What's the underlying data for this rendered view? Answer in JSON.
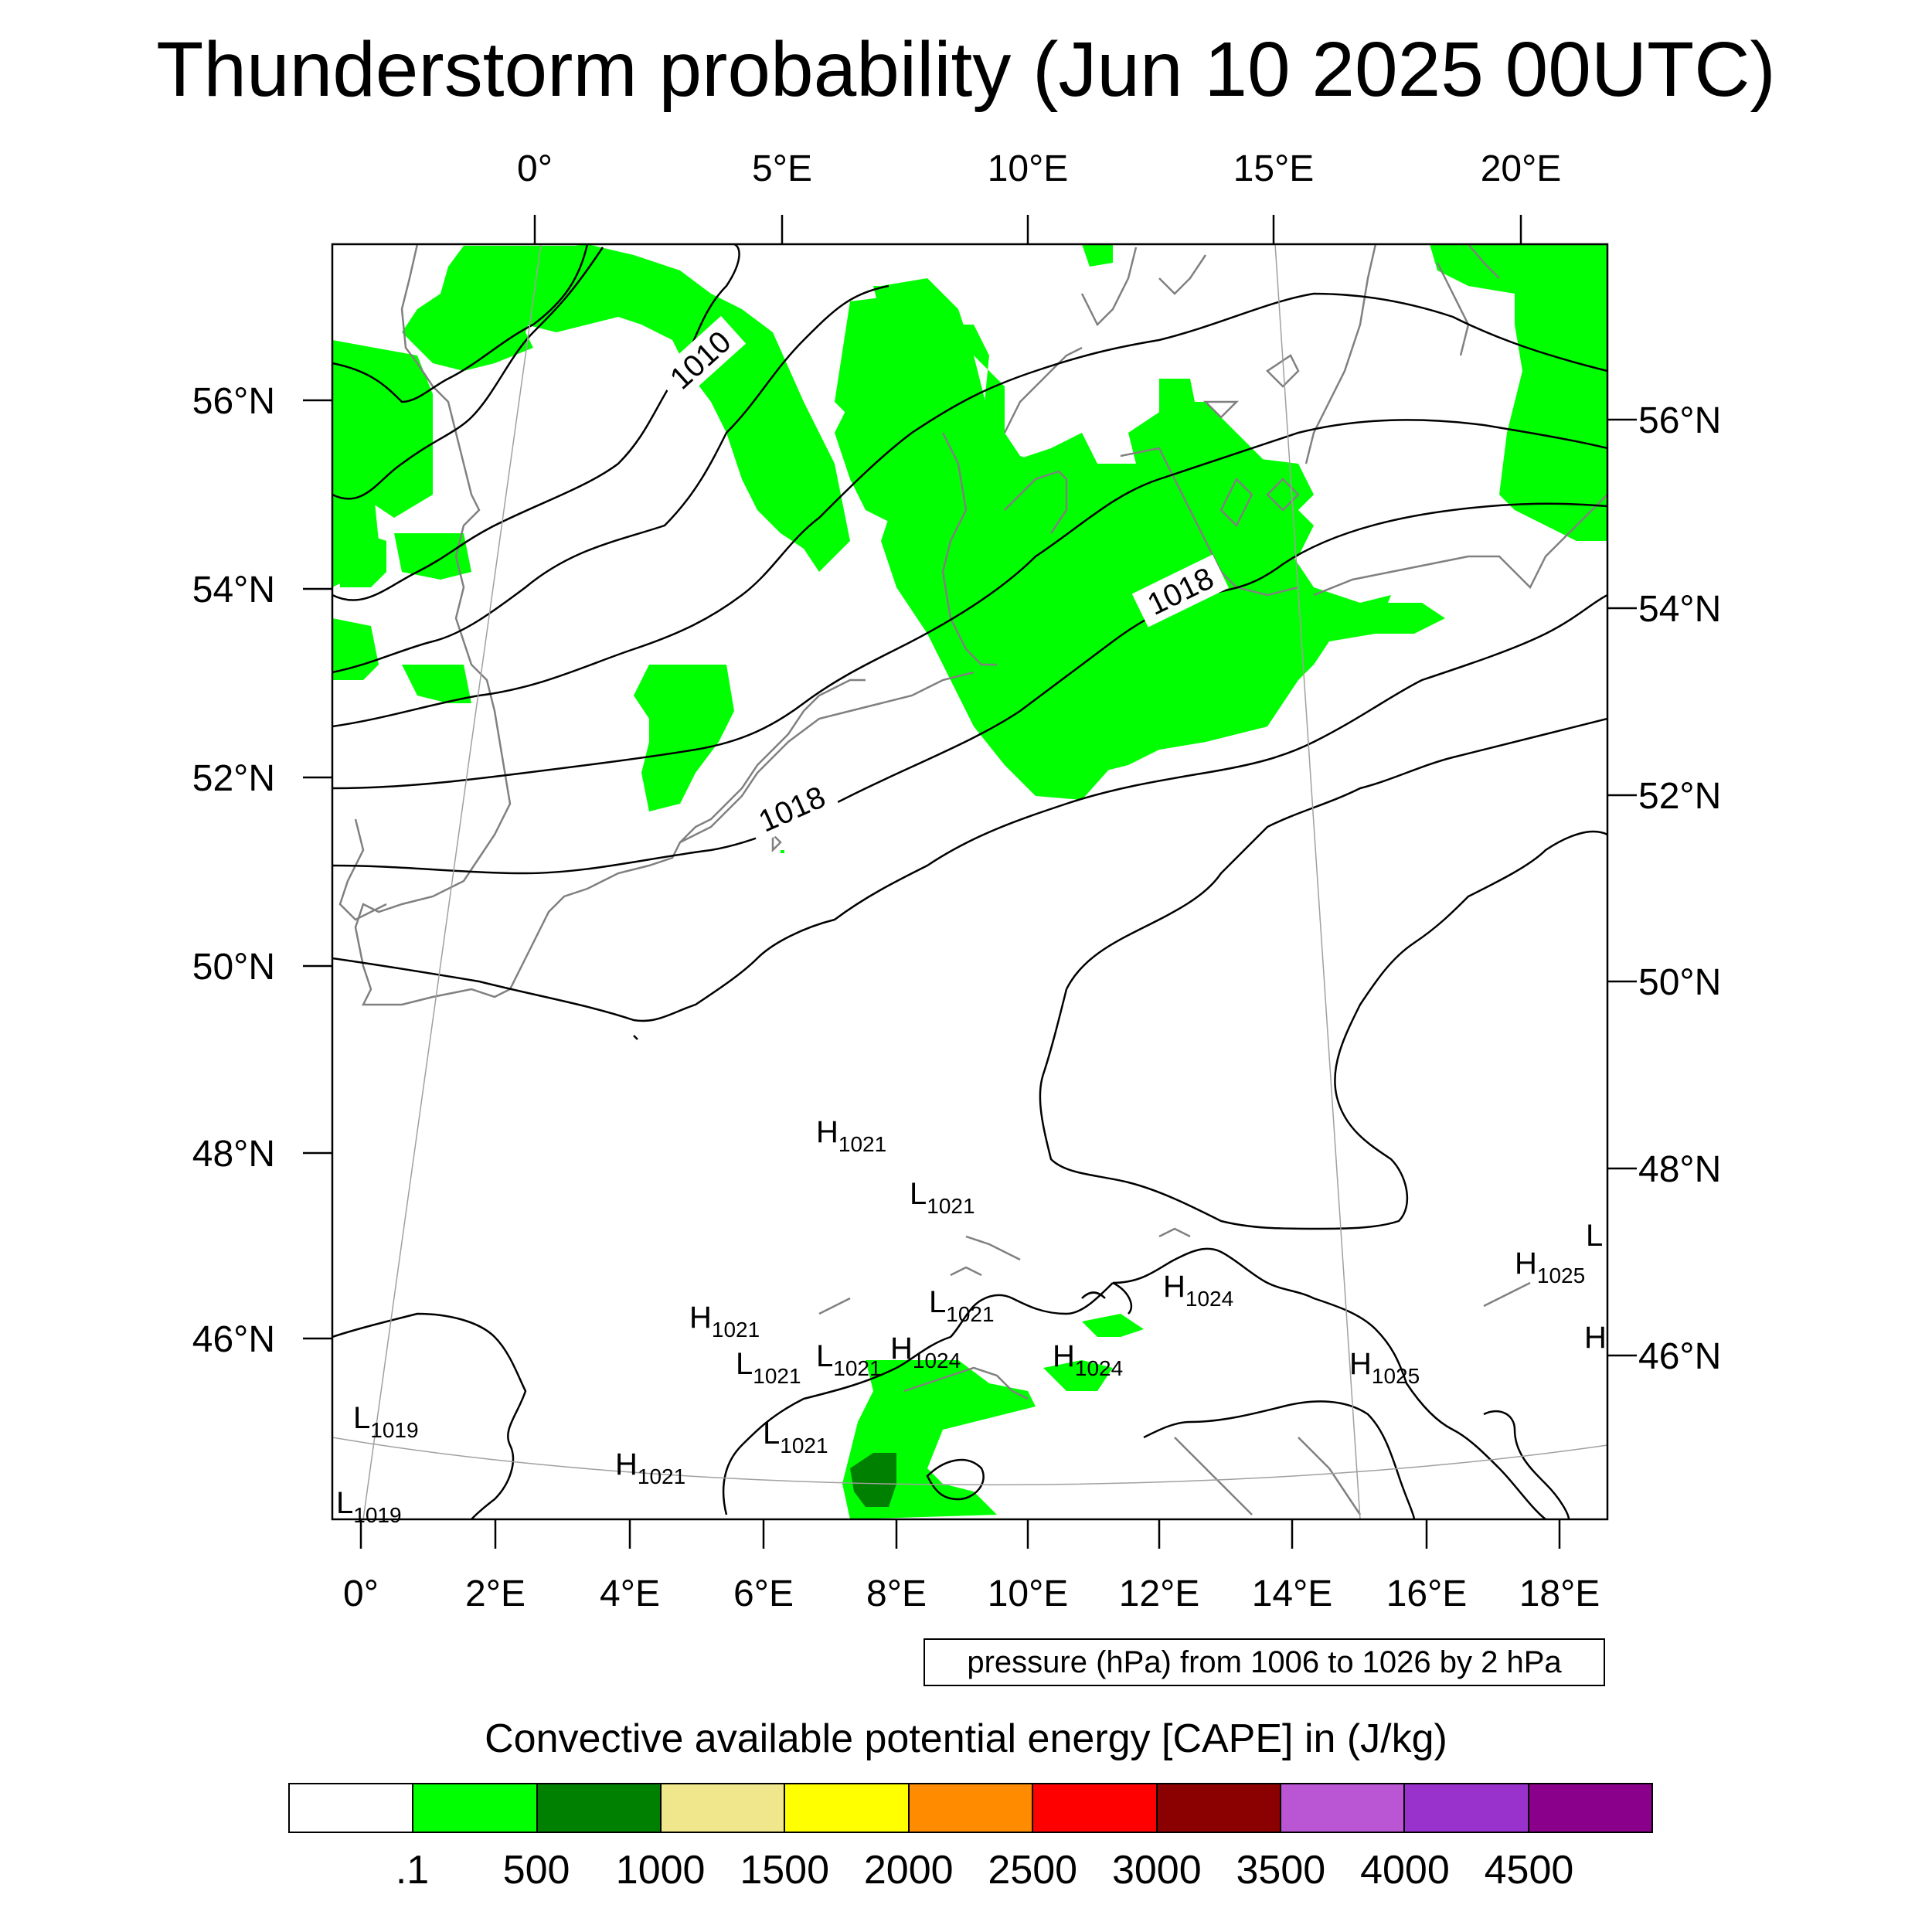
{
  "title": "Thunderstorm probability (Jun 10 2025 00UTC)",
  "top_lon_labels": [
    "0°",
    "5°E",
    "10°E",
    "15°E",
    "20°E"
  ],
  "bottom_lon_labels": [
    "0°",
    "2°E",
    "4°E",
    "6°E",
    "8°E",
    "10°E",
    "12°E",
    "14°E",
    "16°E",
    "18°E"
  ],
  "left_lat_labels": [
    "56°N",
    "54°N",
    "52°N",
    "50°N",
    "48°N",
    "46°N"
  ],
  "right_lat_labels": [
    "56°N",
    "54°N",
    "52°N",
    "50°N",
    "48°N",
    "46°N"
  ],
  "isobar_labels": [
    "1010",
    "1018",
    "1018"
  ],
  "pressure_centers": [
    {
      "letter": "H",
      "value": "1021"
    },
    {
      "letter": "L",
      "value": "1021"
    },
    {
      "letter": "H",
      "value": "1021"
    },
    {
      "letter": "L",
      "value": "1021"
    },
    {
      "letter": "L",
      "value": "1021"
    },
    {
      "letter": "H",
      "value": "1024"
    },
    {
      "letter": "L",
      "value": "1021"
    },
    {
      "letter": "H",
      "value": "1024"
    },
    {
      "letter": "H",
      "value": "1024"
    },
    {
      "letter": "H",
      "value": "1025"
    },
    {
      "letter": "H",
      "value": "1025"
    },
    {
      "letter": "L",
      "value": "1019"
    },
    {
      "letter": "L",
      "value": "1019"
    },
    {
      "letter": "H",
      "value": "1021"
    },
    {
      "letter": "L",
      "value": "1021"
    },
    {
      "letter": "L",
      "value": ""
    },
    {
      "letter": "H",
      "value": ""
    }
  ],
  "info_box": "pressure (hPa) from 1006 to 1026 by 2 hPa",
  "colorbar": {
    "title": "Convective available potential energy [CAPE] in (J/kg)",
    "colors": [
      "#ffffff",
      "#00ff00",
      "#008000",
      "#f0e68c",
      "#ffff00",
      "#ff8c00",
      "#ff0000",
      "#8b0000",
      "#ba55d3",
      "#9932cc",
      "#8b008b"
    ],
    "labels": [
      ".1",
      "500",
      "1000",
      "1500",
      "2000",
      "2500",
      "3000",
      "3500",
      "4000",
      "4500"
    ]
  }
}
